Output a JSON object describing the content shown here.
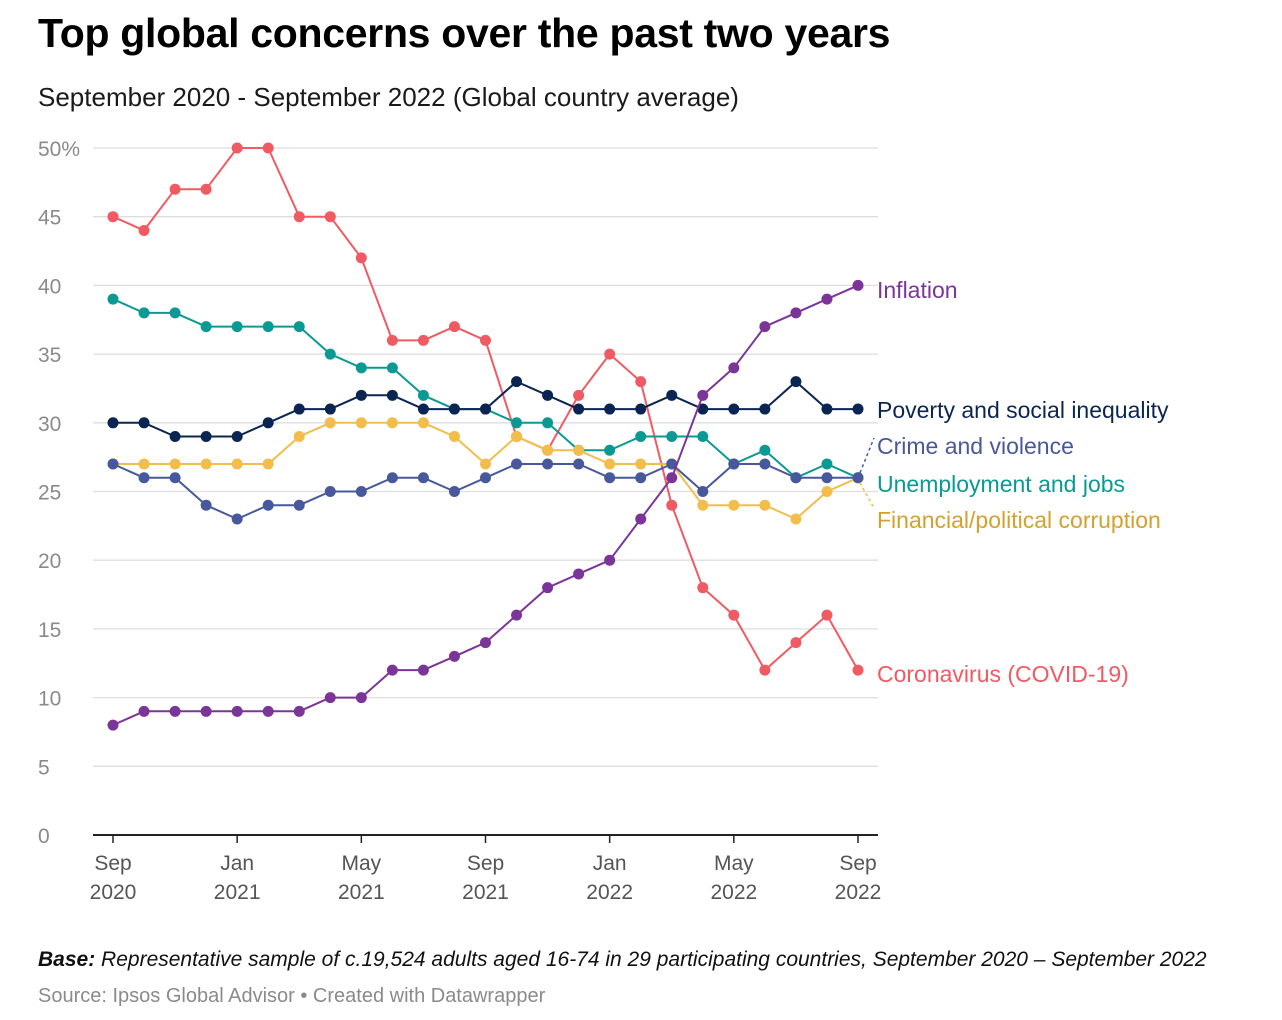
{
  "header": {
    "title": "Top global concerns over the past two years",
    "subtitle": "September 2020 - September 2022 (Global country average)"
  },
  "footer": {
    "base_label": "Base:",
    "base_text": "Representative sample of c.19,524 adults aged 16-74 in 29 participating countries, September 2020 – September 2022",
    "source_text": "Source: Ipsos Global Advisor • Created with Datawrapper"
  },
  "chart_data": {
    "type": "line",
    "x": [
      "2020-09",
      "2020-10",
      "2020-11",
      "2020-12",
      "2021-01",
      "2021-02",
      "2021-03",
      "2021-04",
      "2021-05",
      "2021-06",
      "2021-07",
      "2021-08",
      "2021-09",
      "2021-10",
      "2021-11",
      "2021-12",
      "2022-01",
      "2022-02",
      "2022-03",
      "2022-04",
      "2022-05",
      "2022-06",
      "2022-07",
      "2022-08",
      "2022-09"
    ],
    "x_ticks": [
      {
        "index": 0,
        "line1": "Sep",
        "line2": "2020"
      },
      {
        "index": 4,
        "line1": "Jan",
        "line2": "2021"
      },
      {
        "index": 8,
        "line1": "May",
        "line2": "2021"
      },
      {
        "index": 12,
        "line1": "Sep",
        "line2": "2021"
      },
      {
        "index": 16,
        "line1": "Jan",
        "line2": "2022"
      },
      {
        "index": 20,
        "line1": "May",
        "line2": "2022"
      },
      {
        "index": 24,
        "line1": "Sep",
        "line2": "2022"
      }
    ],
    "y_ticks": [
      "0",
      "5",
      "10",
      "15",
      "20",
      "25",
      "30",
      "35",
      "40",
      "45",
      "50%"
    ],
    "ylim": [
      0,
      50
    ],
    "grid": true,
    "series": [
      {
        "name": "Coronavirus (COVID-19)",
        "color": "#f05a62",
        "values": [
          45,
          44,
          47,
          47,
          50,
          50,
          45,
          45,
          42,
          36,
          36,
          37,
          36,
          29,
          28,
          32,
          35,
          33,
          24,
          18,
          16,
          12,
          14,
          16,
          12
        ]
      },
      {
        "name": "Unemployment and jobs",
        "color": "#0a9a93",
        "values": [
          39,
          38,
          38,
          37,
          37,
          37,
          37,
          35,
          34,
          34,
          32,
          31,
          31,
          30,
          30,
          28,
          28,
          29,
          29,
          29,
          27,
          28,
          26,
          27,
          26
        ]
      },
      {
        "name": "Financial/political corruption",
        "color": "#f2bd4b",
        "values": [
          27,
          27,
          27,
          27,
          27,
          27,
          29,
          30,
          30,
          30,
          30,
          29,
          27,
          29,
          28,
          28,
          27,
          27,
          27,
          24,
          24,
          24,
          23,
          25,
          26
        ]
      },
      {
        "name": "Crime and violence",
        "color": "#47589b",
        "values": [
          27,
          26,
          26,
          24,
          23,
          24,
          24,
          25,
          25,
          26,
          26,
          25,
          26,
          27,
          27,
          27,
          26,
          26,
          27,
          25,
          27,
          27,
          26,
          26,
          26
        ]
      },
      {
        "name": "Poverty and social inequality",
        "color": "#0b2553",
        "values": [
          30,
          30,
          29,
          29,
          29,
          30,
          31,
          31,
          32,
          32,
          31,
          31,
          31,
          33,
          32,
          31,
          31,
          31,
          32,
          31,
          31,
          31,
          33,
          31,
          31
        ]
      },
      {
        "name": "Inflation",
        "color": "#7b3599",
        "values": [
          8,
          9,
          9,
          9,
          9,
          9,
          9,
          10,
          10,
          12,
          12,
          13,
          14,
          16,
          18,
          19,
          20,
          23,
          26,
          32,
          34,
          37,
          38,
          39,
          40
        ]
      }
    ],
    "labels": [
      {
        "series": "Inflation",
        "text": "Inflation",
        "color": "#7b3599"
      },
      {
        "series": "Poverty and social inequality",
        "text": "Poverty and social inequality",
        "color": "#0b2553"
      },
      {
        "series": "Crime and violence",
        "text": "Crime and violence",
        "color": "#47589b"
      },
      {
        "series": "Unemployment and jobs",
        "text": "Unemployment and jobs",
        "color": "#0a9a93"
      },
      {
        "series": "Financial/political corruption",
        "text": "Financial/political corruption",
        "color": "#d2a130"
      },
      {
        "series": "Coronavirus (COVID-19)",
        "text": "Coronavirus (COVID-19)",
        "color": "#f05a62"
      }
    ]
  }
}
